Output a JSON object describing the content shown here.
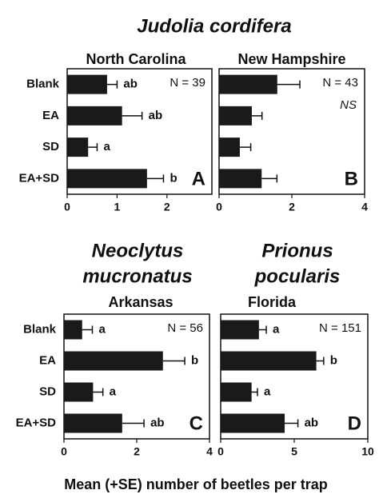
{
  "group_title": "Judolia cordifera",
  "xlabel": "Mean (+SE) number of beetles per trap",
  "chart_data": [
    {
      "type": "bar",
      "orientation": "horizontal",
      "subtitle": "North Carolina",
      "panel": "A",
      "annotation": "N = 39",
      "categories": [
        "Blank",
        "EA",
        "SD",
        "EA+SD"
      ],
      "values": [
        0.8,
        1.1,
        0.42,
        1.6
      ],
      "errors": [
        0.2,
        0.4,
        0.18,
        0.33
      ],
      "letters": [
        "ab",
        "ab",
        "a",
        "b"
      ],
      "color": "#1a1a1a",
      "xlim": [
        0,
        2.9
      ],
      "xticks": [
        0,
        1,
        2
      ]
    },
    {
      "type": "bar",
      "orientation": "horizontal",
      "subtitle": "New Hampshire",
      "panel": "B",
      "annotation": "N = 43",
      "note": "NS",
      "values": [
        1.6,
        0.9,
        0.57,
        1.17
      ],
      "errors": [
        0.62,
        0.28,
        0.3,
        0.42
      ],
      "color": "#1a1a1a",
      "xlim": [
        0,
        4
      ],
      "xticks": [
        0,
        2,
        4
      ]
    },
    {
      "type": "bar",
      "orientation": "horizontal",
      "title": [
        "Neoclytus",
        "mucronatus"
      ],
      "subtitle": "Arkansas",
      "panel": "C",
      "annotation": "N = 56",
      "categories": [
        "Blank",
        "EA",
        "SD",
        "EA+SD"
      ],
      "values": [
        0.5,
        2.72,
        0.8,
        1.6
      ],
      "errors": [
        0.28,
        0.6,
        0.27,
        0.6
      ],
      "letters": [
        "a",
        "b",
        "a",
        "ab"
      ],
      "color": "#1a1a1a",
      "xlim": [
        0,
        4
      ],
      "xticks": [
        0,
        2,
        4
      ]
    },
    {
      "type": "bar",
      "orientation": "horizontal",
      "title": [
        "Prionus",
        "pocularis"
      ],
      "subtitle": "Florida",
      "panel": "D",
      "annotation": "N = 151",
      "values": [
        2.6,
        6.5,
        2.1,
        4.35
      ],
      "errors": [
        0.5,
        0.5,
        0.4,
        0.9
      ],
      "letters": [
        "a",
        "b",
        "a",
        "ab"
      ],
      "color": "#1a1a1a",
      "xlim": [
        0,
        10
      ],
      "xticks": [
        0,
        5,
        10
      ]
    }
  ]
}
